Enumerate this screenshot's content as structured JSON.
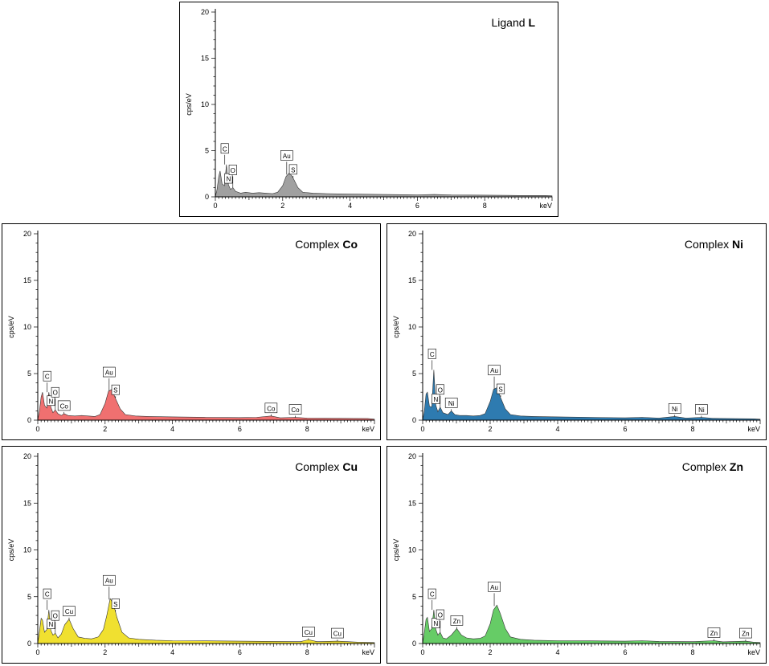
{
  "chart_data": [
    {
      "id": "L",
      "type": "area",
      "title_prefix": "Ligand",
      "title_bold": "L",
      "xlabel": "keV",
      "ylabel": "cps/eV",
      "xlim": [
        0,
        10
      ],
      "ylim": [
        0,
        20
      ],
      "xticks": [
        "0",
        "2",
        "4",
        "6",
        "8"
      ],
      "yticks": [
        "0",
        "5",
        "10",
        "15",
        "20"
      ],
      "color": "#a0a0a0",
      "spectrum": {
        "x": [
          0,
          0.05,
          0.1,
          0.14,
          0.2,
          0.27,
          0.33,
          0.39,
          0.45,
          0.52,
          0.6,
          0.75,
          0.9,
          1.1,
          1.3,
          1.5,
          1.7,
          1.85,
          2.0,
          2.1,
          2.2,
          2.3,
          2.45,
          2.6,
          2.9,
          3.3,
          4.0,
          5.0,
          6.0,
          6.5,
          7.0,
          8.0,
          9.0,
          9.8,
          10.0
        ],
        "y": [
          0,
          0.8,
          2.2,
          2.8,
          1.4,
          1.2,
          3.5,
          1.3,
          0.8,
          1.0,
          0.6,
          0.4,
          0.5,
          0.4,
          0.45,
          0.4,
          0.35,
          0.5,
          1.2,
          2.2,
          2.6,
          2.1,
          1.0,
          0.5,
          0.4,
          0.35,
          0.3,
          0.25,
          0.22,
          0.25,
          0.2,
          0.18,
          0.15,
          0.15,
          0.1
        ]
      },
      "peaks": [
        {
          "label": "C",
          "x": 0.28,
          "y": 3.5
        },
        {
          "label": "N",
          "x": 0.39,
          "y": 1.3
        },
        {
          "label": "O",
          "x": 0.52,
          "y": 1.0
        },
        {
          "label": "Au",
          "x": 2.12,
          "y": 2.4
        },
        {
          "label": "S",
          "x": 2.31,
          "y": 2.1
        }
      ]
    },
    {
      "id": "Co",
      "type": "area",
      "title_prefix": "Complex",
      "title_bold": "Co",
      "xlabel": "keV",
      "ylabel": "cps/eV",
      "xlim": [
        0,
        10
      ],
      "ylim": [
        0,
        20
      ],
      "xticks": [
        "0",
        "2",
        "4",
        "6",
        "8"
      ],
      "yticks": [
        "0",
        "5",
        "10",
        "15",
        "20"
      ],
      "color": "#f07070",
      "spectrum": {
        "x": [
          0,
          0.05,
          0.1,
          0.14,
          0.2,
          0.27,
          0.33,
          0.39,
          0.45,
          0.52,
          0.6,
          0.7,
          0.78,
          0.9,
          1.1,
          1.3,
          1.5,
          1.7,
          1.85,
          2.0,
          2.1,
          2.2,
          2.3,
          2.45,
          2.6,
          2.9,
          3.3,
          4.0,
          5.0,
          6.0,
          6.5,
          6.93,
          7.2,
          7.65,
          8.0,
          9.0,
          9.8,
          10.0
        ],
        "y": [
          0,
          1.0,
          2.5,
          3.0,
          1.6,
          1.3,
          3.0,
          1.4,
          0.8,
          1.1,
          0.7,
          0.5,
          0.7,
          0.5,
          0.45,
          0.5,
          0.45,
          0.4,
          0.6,
          1.8,
          3.1,
          3.3,
          2.4,
          1.2,
          0.6,
          0.45,
          0.4,
          0.35,
          0.3,
          0.28,
          0.3,
          0.45,
          0.25,
          0.3,
          0.22,
          0.2,
          0.18,
          0.1
        ]
      },
      "peaks": [
        {
          "label": "C",
          "x": 0.28,
          "y": 3.0
        },
        {
          "label": "N",
          "x": 0.39,
          "y": 1.4
        },
        {
          "label": "O",
          "x": 0.52,
          "y": 1.1
        },
        {
          "label": "Co",
          "x": 0.78,
          "y": 0.7
        },
        {
          "label": "Au",
          "x": 2.12,
          "y": 3.1
        },
        {
          "label": "S",
          "x": 2.31,
          "y": 2.4
        },
        {
          "label": "Co",
          "x": 6.93,
          "y": 0.45
        },
        {
          "label": "Co",
          "x": 7.65,
          "y": 0.3
        }
      ]
    },
    {
      "id": "Ni",
      "type": "area",
      "title_prefix": "Complex",
      "title_bold": "Ni",
      "xlabel": "keV",
      "ylabel": "cps/eV",
      "xlim": [
        0,
        10
      ],
      "ylim": [
        0,
        20
      ],
      "xticks": [
        "0",
        "2",
        "4",
        "6",
        "8"
      ],
      "yticks": [
        "0",
        "5",
        "10",
        "15",
        "20"
      ],
      "color": "#2e7bb0",
      "spectrum": {
        "x": [
          0,
          0.05,
          0.1,
          0.14,
          0.2,
          0.27,
          0.33,
          0.39,
          0.45,
          0.52,
          0.6,
          0.75,
          0.85,
          0.95,
          1.1,
          1.3,
          1.5,
          1.7,
          1.85,
          2.0,
          2.1,
          2.2,
          2.3,
          2.45,
          2.6,
          2.9,
          3.3,
          4.0,
          5.0,
          6.0,
          6.5,
          7.0,
          7.47,
          7.8,
          8.26,
          8.6,
          9.0,
          9.8,
          10.0
        ],
        "y": [
          0,
          1.0,
          2.8,
          3.0,
          1.5,
          1.4,
          5.4,
          1.6,
          0.9,
          1.4,
          0.8,
          0.6,
          1.0,
          0.6,
          0.5,
          0.5,
          0.45,
          0.5,
          0.7,
          2.0,
          3.3,
          3.5,
          2.5,
          1.2,
          0.6,
          0.45,
          0.4,
          0.35,
          0.3,
          0.25,
          0.3,
          0.22,
          0.4,
          0.22,
          0.3,
          0.2,
          0.18,
          0.15,
          0.1
        ]
      },
      "peaks": [
        {
          "label": "C",
          "x": 0.28,
          "y": 5.4
        },
        {
          "label": "N",
          "x": 0.39,
          "y": 1.6
        },
        {
          "label": "O",
          "x": 0.52,
          "y": 1.4
        },
        {
          "label": "Ni",
          "x": 0.85,
          "y": 1.0
        },
        {
          "label": "Au",
          "x": 2.12,
          "y": 3.3
        },
        {
          "label": "S",
          "x": 2.31,
          "y": 2.5
        },
        {
          "label": "Ni",
          "x": 7.47,
          "y": 0.4
        },
        {
          "label": "Ni",
          "x": 8.26,
          "y": 0.3
        }
      ]
    },
    {
      "id": "Cu",
      "type": "area",
      "title_prefix": "Complex",
      "title_bold": "Cu",
      "xlabel": "keV",
      "ylabel": "cps/eV",
      "xlim": [
        0,
        10
      ],
      "ylim": [
        0,
        20
      ],
      "xticks": [
        "0",
        "2",
        "4",
        "6",
        "8"
      ],
      "yticks": [
        "0",
        "5",
        "10",
        "15",
        "20"
      ],
      "color": "#f0e030",
      "spectrum": {
        "x": [
          0,
          0.05,
          0.1,
          0.14,
          0.2,
          0.27,
          0.33,
          0.39,
          0.45,
          0.52,
          0.6,
          0.7,
          0.8,
          0.93,
          1.05,
          1.2,
          1.4,
          1.6,
          1.8,
          1.95,
          2.05,
          2.15,
          2.25,
          2.35,
          2.5,
          2.7,
          3.0,
          3.5,
          4.0,
          5.0,
          6.0,
          7.0,
          7.8,
          8.04,
          8.3,
          8.9,
          9.5,
          10.0
        ],
        "y": [
          0,
          1.3,
          2.7,
          2.5,
          1.2,
          1.5,
          3.6,
          1.4,
          0.9,
          1.1,
          0.6,
          1.0,
          2.0,
          2.6,
          1.6,
          0.7,
          0.55,
          0.5,
          0.7,
          1.5,
          3.0,
          4.8,
          4.2,
          2.8,
          1.2,
          0.6,
          0.45,
          0.35,
          0.3,
          0.28,
          0.25,
          0.22,
          0.2,
          0.4,
          0.2,
          0.25,
          0.15,
          0.1
        ]
      },
      "peaks": [
        {
          "label": "C",
          "x": 0.28,
          "y": 3.6
        },
        {
          "label": "N",
          "x": 0.39,
          "y": 1.4
        },
        {
          "label": "O",
          "x": 0.52,
          "y": 1.1
        },
        {
          "label": "Cu",
          "x": 0.93,
          "y": 2.6
        },
        {
          "label": "Au",
          "x": 2.12,
          "y": 4.7
        },
        {
          "label": "S",
          "x": 2.31,
          "y": 3.4
        },
        {
          "label": "Cu",
          "x": 8.04,
          "y": 0.4
        },
        {
          "label": "Cu",
          "x": 8.9,
          "y": 0.25
        }
      ]
    },
    {
      "id": "Zn",
      "type": "area",
      "title_prefix": "Complex",
      "title_bold": "Zn",
      "xlabel": "keV",
      "ylabel": "cps/eV",
      "xlim": [
        0,
        10
      ],
      "ylim": [
        0,
        20
      ],
      "xticks": [
        "0",
        "2",
        "4",
        "6",
        "8"
      ],
      "yticks": [
        "0",
        "5",
        "10",
        "15",
        "20"
      ],
      "color": "#66cc66",
      "spectrum": {
        "x": [
          0,
          0.05,
          0.1,
          0.14,
          0.2,
          0.27,
          0.33,
          0.39,
          0.45,
          0.52,
          0.6,
          0.7,
          0.85,
          1.01,
          1.15,
          1.3,
          1.5,
          1.7,
          1.85,
          2.0,
          2.1,
          2.2,
          2.3,
          2.45,
          2.6,
          2.9,
          3.3,
          4.0,
          5.0,
          6.0,
          6.5,
          7.0,
          8.0,
          8.63,
          8.9,
          9.57,
          9.8,
          10.0
        ],
        "y": [
          0,
          1.2,
          2.6,
          2.8,
          1.3,
          1.6,
          3.6,
          1.5,
          0.9,
          1.2,
          0.6,
          0.5,
          0.9,
          1.6,
          0.9,
          0.6,
          0.5,
          0.55,
          0.8,
          2.1,
          3.6,
          4.1,
          3.2,
          1.6,
          0.7,
          0.45,
          0.35,
          0.3,
          0.28,
          0.25,
          0.3,
          0.22,
          0.2,
          0.3,
          0.18,
          0.25,
          0.15,
          0.1
        ]
      },
      "peaks": [
        {
          "label": "C",
          "x": 0.28,
          "y": 3.6
        },
        {
          "label": "N",
          "x": 0.39,
          "y": 1.5
        },
        {
          "label": "O",
          "x": 0.52,
          "y": 1.2
        },
        {
          "label": "Zn",
          "x": 1.01,
          "y": 1.6
        },
        {
          "label": "Au",
          "x": 2.12,
          "y": 4.0
        },
        {
          "label": "Zn",
          "x": 8.63,
          "y": 0.3
        },
        {
          "label": "Zn",
          "x": 9.57,
          "y": 0.25
        }
      ]
    }
  ]
}
